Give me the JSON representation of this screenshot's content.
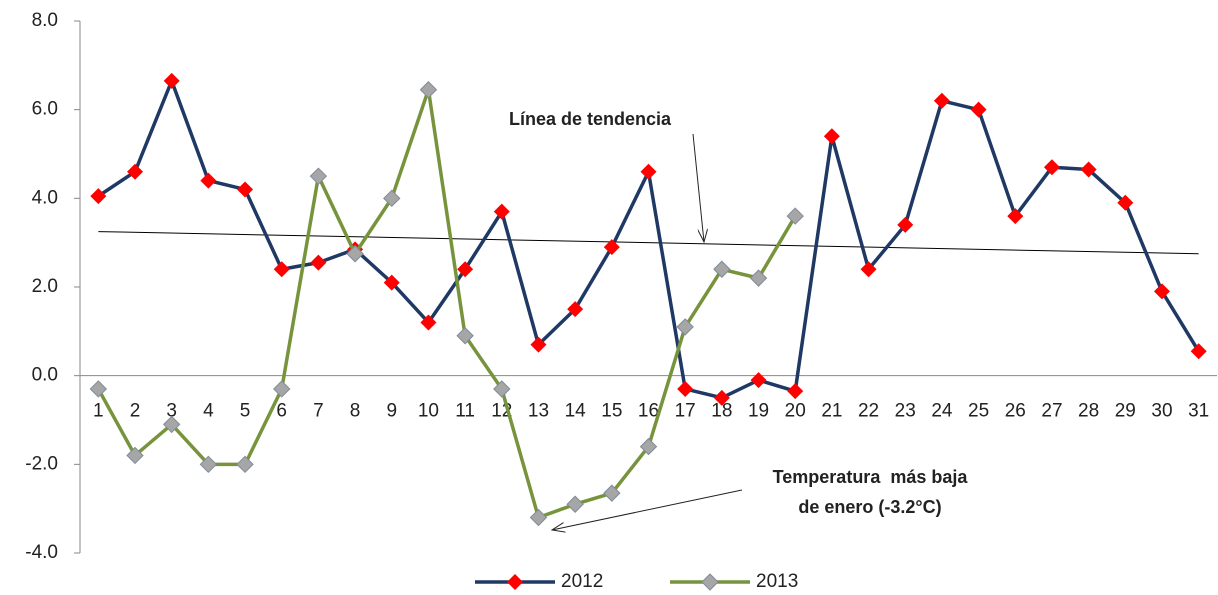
{
  "chart_data": {
    "type": "line",
    "categories": [
      "1",
      "2",
      "3",
      "4",
      "5",
      "6",
      "7",
      "8",
      "9",
      "10",
      "11",
      "12",
      "13",
      "14",
      "15",
      "16",
      "17",
      "18",
      "19",
      "20",
      "21",
      "22",
      "23",
      "24",
      "25",
      "26",
      "27",
      "28",
      "29",
      "30",
      "31"
    ],
    "series": [
      {
        "name": "2012",
        "color": "#1f3864",
        "marker_color": "#ff0000",
        "values": [
          4.05,
          4.6,
          6.65,
          4.4,
          4.2,
          2.4,
          2.55,
          2.85,
          2.1,
          1.2,
          2.4,
          3.7,
          0.7,
          1.5,
          2.9,
          4.6,
          -0.3,
          -0.5,
          -0.1,
          -0.35,
          5.4,
          2.4,
          3.4,
          6.2,
          6.0,
          3.6,
          4.7,
          4.65,
          3.9,
          1.9,
          0.55
        ]
      },
      {
        "name": "2013",
        "color": "#77933c",
        "marker_color": "#a6a6a6",
        "values": [
          -0.3,
          -1.8,
          -1.1,
          -2.0,
          -2.0,
          -0.3,
          4.5,
          2.75,
          4.0,
          6.45,
          0.9,
          -0.3,
          -3.2,
          -2.9,
          -2.65,
          -1.6,
          1.1,
          2.4,
          2.2,
          3.6,
          null,
          null,
          null,
          null,
          null,
          null,
          null,
          null,
          null,
          null,
          null
        ]
      }
    ],
    "trend_line": [
      3.25,
      2.75
    ],
    "annotations": [
      "Línea de tendencia",
      "Temperatura  más baja",
      "de enero (-3.2°C)"
    ],
    "ylim": [
      -4,
      8
    ],
    "yticks": [
      {
        "value": -4,
        "label": "-4.0"
      },
      {
        "value": -2,
        "label": "-2.0"
      },
      {
        "value": 0,
        "label": "0.0"
      },
      {
        "value": 2,
        "label": "2.0"
      },
      {
        "value": 4,
        "label": "4.0"
      },
      {
        "value": 6,
        "label": "6.0"
      },
      {
        "value": 8,
        "label": "8.0"
      }
    ],
    "legend": "bottom"
  }
}
